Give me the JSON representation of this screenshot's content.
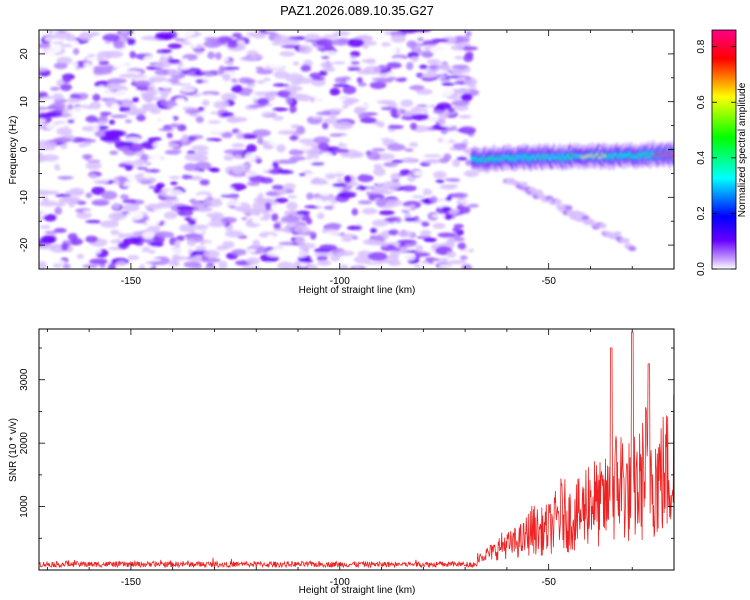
{
  "title": "PAZ1.2026.089.10.35.G27",
  "chart_data": [
    {
      "type": "heatmap",
      "xlabel": "Height of straight line (km)",
      "ylabel": "Frequency (Hz)",
      "xlim": [
        -172,
        -20
      ],
      "ylim": [
        -25,
        25
      ],
      "xticks": [
        -150,
        -100,
        -50
      ],
      "yticks": [
        -20,
        -10,
        0,
        10,
        20
      ],
      "colorbar": {
        "label": "Normalized spectral amplitude",
        "range": [
          0,
          0.86
        ],
        "ticks": [
          0.0,
          0.2,
          0.4,
          0.6,
          0.8
        ],
        "colors": [
          "#ffffff",
          "#6600ff",
          "#0000ff",
          "#00ffff",
          "#00ff00",
          "#ffff00",
          "#ff0000",
          "#ff0088"
        ]
      },
      "noise_region": {
        "x_from": -172,
        "x_to": -68,
        "f_from": -25,
        "f_to": 25,
        "amplitude": [
          0.0,
          0.2
        ]
      },
      "signal_band": {
        "x_from": -68,
        "x_to": -20,
        "f_center_start": -2,
        "f_center_end": -1,
        "peak_x": -22,
        "peak_amplitude": 0.86
      },
      "tail": {
        "x_from": -60,
        "x_to": -30,
        "f_from": -6,
        "f_to": -20
      }
    },
    {
      "type": "line",
      "xlabel": "Height of straight line (km)",
      "ylabel": "SNR (10 * v/v)",
      "xlim": [
        -172,
        -20
      ],
      "ylim": [
        0,
        3800
      ],
      "xticks": [
        -150,
        -100,
        -50
      ],
      "yticks": [
        1000,
        2000,
        3000
      ],
      "color": "#ee2222",
      "baseline": 90,
      "rise_start": -67,
      "max_value": 3750,
      "max_x": -30
    }
  ]
}
